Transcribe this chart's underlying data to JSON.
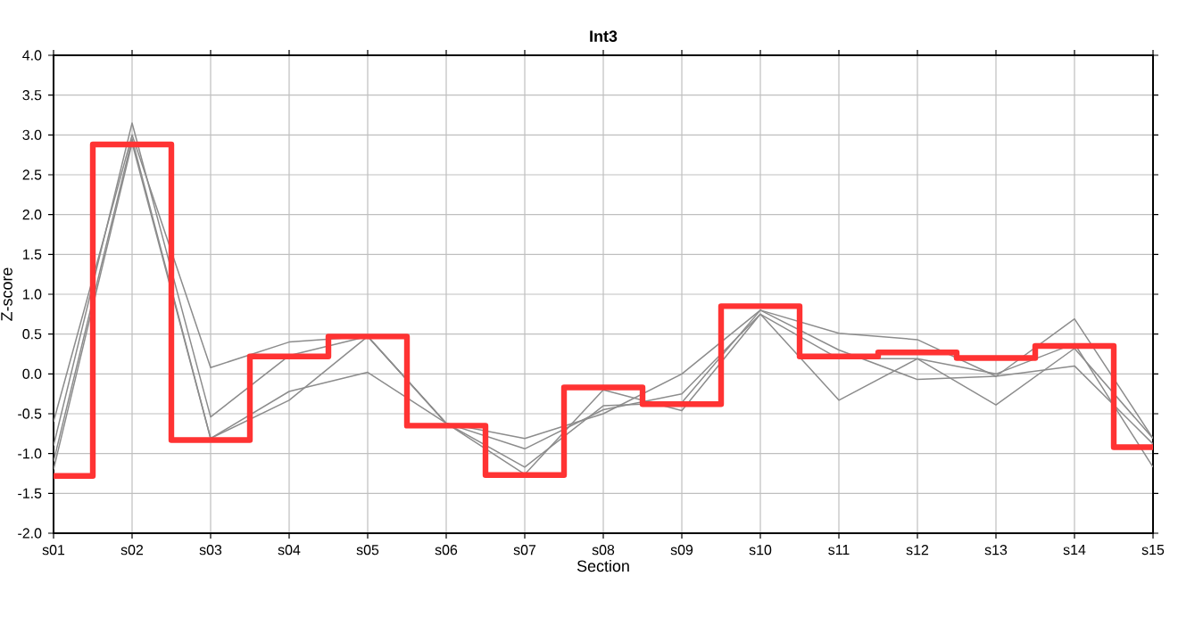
{
  "chart_data": {
    "type": "line",
    "title": "Int3",
    "xlabel": "Section",
    "ylabel": "Z-score",
    "categories": [
      "s01",
      "s02",
      "s03",
      "s04",
      "s05",
      "s06",
      "s07",
      "s08",
      "s09",
      "s10",
      "s11",
      "s12",
      "s13",
      "s14",
      "s15"
    ],
    "series": [
      {
        "color": "#8c8c8c",
        "values": [
          -0.6,
          3.0,
          0.08,
          0.4,
          0.47,
          -0.62,
          -0.81,
          -0.5,
          0.0,
          0.8,
          0.51,
          0.43,
          -0.03,
          0.1,
          -0.88
        ]
      },
      {
        "color": "#8c8c8c",
        "values": [
          -0.9,
          3.15,
          -0.54,
          0.23,
          0.47,
          -0.62,
          -0.94,
          -0.45,
          -0.25,
          0.75,
          -0.33,
          0.19,
          -0.39,
          0.32,
          -0.81
        ]
      },
      {
        "color": "#8c8c8c",
        "values": [
          -1.1,
          2.95,
          -0.81,
          -0.22,
          0.02,
          -0.62,
          -1.17,
          -0.4,
          -0.36,
          0.8,
          0.3,
          -0.07,
          -0.03,
          0.69,
          -0.81
        ]
      },
      {
        "color": "#8c8c8c",
        "values": [
          -1.2,
          2.9,
          -0.81,
          -0.33,
          0.47,
          -0.62,
          -1.26,
          -0.2,
          -0.46,
          0.75,
          0.19,
          0.19,
          0.0,
          0.38,
          -1.17
        ]
      },
      {
        "type": "step",
        "color": "#ff3333",
        "values": [
          -1.28,
          2.88,
          -0.83,
          0.22,
          0.47,
          -0.65,
          -1.27,
          -0.17,
          -0.38,
          0.85,
          0.22,
          0.27,
          0.2,
          0.35,
          -0.92
        ]
      }
    ],
    "ylim": [
      -2,
      4
    ],
    "yticks": [
      {
        "value": -2,
        "label": "-2.0"
      },
      {
        "value": -1.5,
        "label": "-1.5"
      },
      {
        "value": -1,
        "label": "-1.0"
      },
      {
        "value": -0.5,
        "label": "-0.5"
      },
      {
        "value": 0,
        "label": "0.0"
      },
      {
        "value": 0.5,
        "label": "0.5"
      },
      {
        "value": 1,
        "label": "1.0"
      },
      {
        "value": 1.5,
        "label": "1.5"
      },
      {
        "value": 2,
        "label": "2.0"
      },
      {
        "value": 2.5,
        "label": "2.5"
      },
      {
        "value": 3,
        "label": "3.0"
      },
      {
        "value": 3.5,
        "label": "3.5"
      },
      {
        "value": 4,
        "label": "4.0"
      }
    ],
    "grid": true,
    "legend": false,
    "marker": "none"
  }
}
